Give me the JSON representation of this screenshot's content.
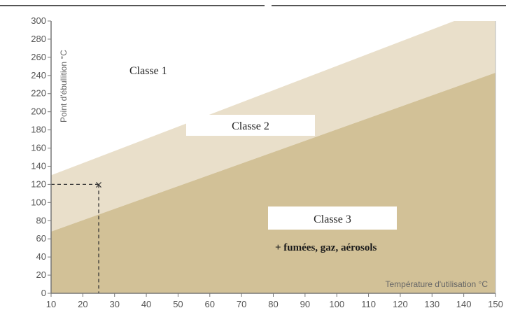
{
  "chart_data": {
    "type": "area",
    "title": "",
    "xlabel": "Température d'utilisation °C",
    "ylabel": "Point d'ébullition °C",
    "xlim": [
      10,
      150
    ],
    "ylim": [
      0,
      300
    ],
    "x_ticks": [
      10,
      20,
      30,
      40,
      50,
      60,
      70,
      80,
      90,
      100,
      110,
      120,
      130,
      140,
      150
    ],
    "y_ticks": [
      0,
      20,
      40,
      60,
      80,
      100,
      120,
      140,
      160,
      180,
      200,
      220,
      240,
      260,
      280,
      300
    ],
    "grid": false,
    "regions": [
      {
        "name": "Classe 1",
        "label": "Classe 1",
        "color": "#ffffff"
      },
      {
        "name": "Classe 2",
        "label": "Classe 2",
        "color": "#e9dfca",
        "upper_boundary": [
          [
            10,
            130
          ],
          [
            137,
            300
          ]
        ],
        "lower_boundary": [
          [
            10,
            68
          ],
          [
            150,
            243
          ]
        ]
      },
      {
        "name": "Classe 3",
        "label": "Classe 3",
        "color": "#d2c197",
        "upper_boundary": [
          [
            10,
            68
          ],
          [
            150,
            243
          ]
        ]
      }
    ],
    "annotations": [
      {
        "text": "+ fumées, gaz, aérosols"
      },
      {
        "marker": "×",
        "x": 25,
        "y": 120,
        "style": "dashed guide lines to both axes"
      }
    ]
  },
  "labels": {
    "classe1": "Classe  1",
    "classe2": "Classe  2",
    "classe3": "Classe  3",
    "fumes": "+ fumées, gaz, aérosols",
    "xlabel": "Température d'utilisation °C",
    "ylabel": "Point d'ébullition °C",
    "marker": "×"
  }
}
